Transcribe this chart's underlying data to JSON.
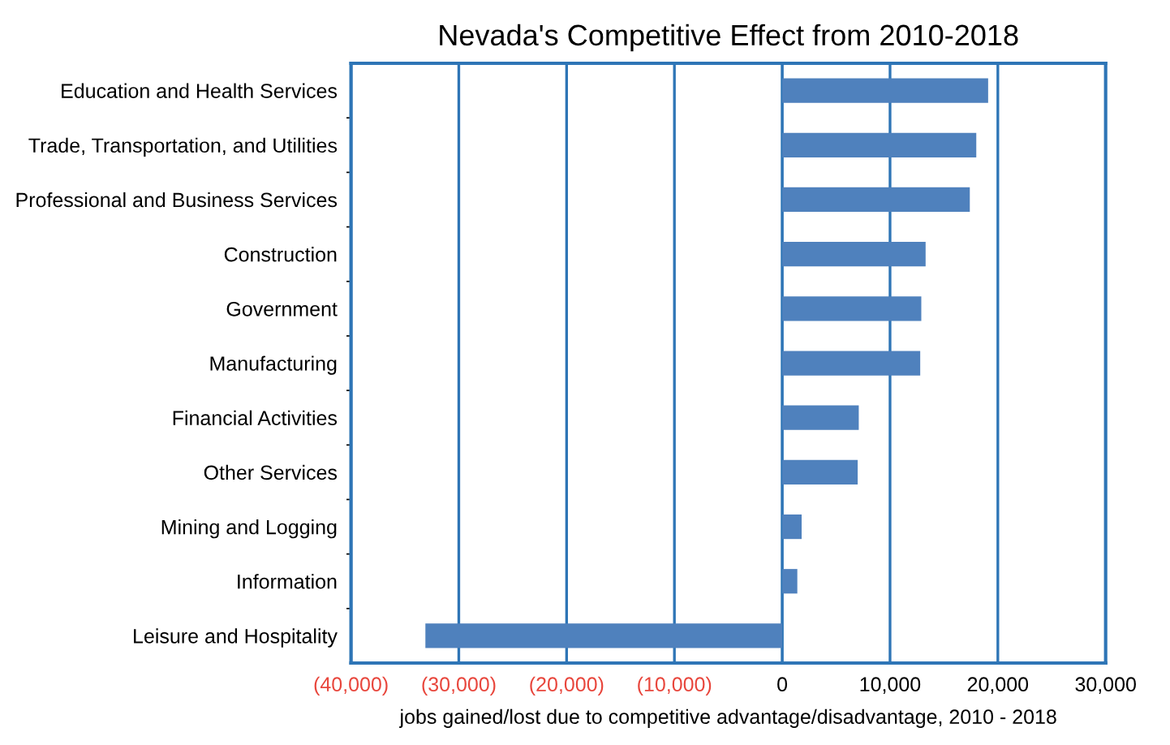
{
  "chart_data": {
    "type": "bar",
    "orientation": "horizontal",
    "title": "Nevada's Competitive Effect from 2010-2018",
    "xlabel": "jobs gained/lost due to competitive advantage/disadvantage, 2010 - 2018",
    "categories": [
      "Education and Health Services",
      "Trade, Transportation, and Utilities",
      "Professional and Business Services",
      "Construction",
      "Government",
      "Manufacturing",
      "Financial Activities",
      "Other Services",
      "Mining and Logging",
      "Information",
      "Leisure and Hospitality"
    ],
    "values": [
      19100,
      18000,
      17400,
      13300,
      12900,
      12800,
      7100,
      7000,
      1800,
      1400,
      -33100
    ],
    "color": "#4f81bd",
    "xlim": [
      -40000,
      30000
    ],
    "xticks": [
      {
        "value": -40000,
        "label": "(40,000)"
      },
      {
        "value": -30000,
        "label": "(30,000)"
      },
      {
        "value": -20000,
        "label": "(20,000)"
      },
      {
        "value": -10000,
        "label": "(10,000)"
      },
      0,
      {
        "value": 10000,
        "label": "10,000"
      },
      {
        "value": 20000,
        "label": "20,000"
      },
      {
        "value": 30000,
        "label": "30,000"
      }
    ],
    "ref_lines": [
      {
        "axis": "x",
        "value": 0,
        "color": "#2e75b6"
      }
    ],
    "grid": "x",
    "legend": false
  }
}
